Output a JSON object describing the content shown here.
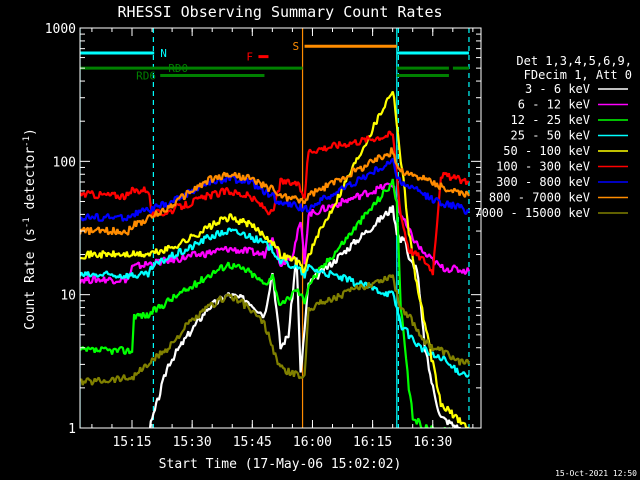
{
  "chart_data": {
    "type": "line",
    "title": "RHESSI Observing Summary Count Rates",
    "xlabel": "Start Time (17-May-06 15:02:02)",
    "ylabel_main": "Count Rate (s",
    "ylabel_sup": "-1",
    "ylabel_tail": " detector",
    "ylabel_close": ")",
    "x_range_minutes": [
      0,
      100
    ],
    "y_range": [
      1,
      1000
    ],
    "y_scale": "log",
    "x_ticks": [
      {
        "minute": 12.97,
        "label": "15:15"
      },
      {
        "minute": 27.97,
        "label": "15:30"
      },
      {
        "minute": 42.97,
        "label": "15:45"
      },
      {
        "minute": 57.97,
        "label": "16:00"
      },
      {
        "minute": 72.97,
        "label": "16:15"
      },
      {
        "minute": 87.97,
        "label": "16:30"
      }
    ],
    "y_ticks": [
      {
        "value": 1,
        "label": "1"
      },
      {
        "value": 10,
        "label": "10"
      },
      {
        "value": 100,
        "label": "100"
      },
      {
        "value": 1000,
        "label": "1000"
      }
    ],
    "legend_header": [
      "Det 1,3,4,5,6,9,",
      "FDecim 1, Att 0"
    ],
    "legend_position": "right",
    "series": [
      {
        "name": "3 - 6 keV",
        "color": "#ffffff",
        "points": [
          [
            0,
            0.9
          ],
          [
            17,
            0.9
          ],
          [
            22,
            3
          ],
          [
            27,
            5
          ],
          [
            32,
            8
          ],
          [
            37,
            10
          ],
          [
            42,
            9
          ],
          [
            46,
            7
          ],
          [
            48,
            15
          ],
          [
            50,
            4
          ],
          [
            52,
            5
          ],
          [
            54,
            20
          ],
          [
            55,
            2.5
          ],
          [
            57,
            12
          ],
          [
            78,
            45
          ],
          [
            79,
            30
          ],
          [
            80,
            25
          ],
          [
            81,
            28
          ],
          [
            82,
            18
          ],
          [
            84,
            16
          ],
          [
            86,
            4
          ],
          [
            88,
            2
          ],
          [
            90,
            1.2
          ],
          [
            97,
            0.9
          ]
        ]
      },
      {
        "name": "6 - 12 keV",
        "color": "#ff00ff",
        "points": [
          [
            0,
            13
          ],
          [
            12,
            13
          ],
          [
            13,
            16
          ],
          [
            17,
            17
          ],
          [
            22,
            18
          ],
          [
            30,
            20
          ],
          [
            37,
            22
          ],
          [
            42,
            21
          ],
          [
            46,
            20
          ],
          [
            48,
            28
          ],
          [
            50,
            17
          ],
          [
            53,
            20
          ],
          [
            55,
            35
          ],
          [
            56,
            18
          ],
          [
            57,
            40
          ],
          [
            78,
            68
          ],
          [
            79,
            50
          ],
          [
            80,
            40
          ],
          [
            82,
            30
          ],
          [
            84,
            24
          ],
          [
            86,
            20
          ],
          [
            88,
            18
          ],
          [
            90,
            16
          ],
          [
            97,
            15
          ]
        ]
      },
      {
        "name": "12 - 25 keV",
        "color": "#00ff00",
        "points": [
          [
            0,
            3.8
          ],
          [
            13,
            3.8
          ],
          [
            13.5,
            7
          ],
          [
            17,
            7
          ],
          [
            22,
            9
          ],
          [
            27,
            11
          ],
          [
            32,
            14
          ],
          [
            37,
            17
          ],
          [
            42,
            15
          ],
          [
            46,
            12
          ],
          [
            48,
            14
          ],
          [
            50,
            8
          ],
          [
            54,
            11
          ],
          [
            56,
            9
          ],
          [
            57,
            12
          ],
          [
            78,
            70
          ],
          [
            79,
            50
          ],
          [
            80,
            8
          ],
          [
            82,
            2
          ],
          [
            83,
            1.2
          ],
          [
            86,
            1
          ],
          [
            97,
            0.9
          ]
        ]
      },
      {
        "name": "25 - 50 keV",
        "color": "#00ffff",
        "points": [
          [
            0,
            14
          ],
          [
            17,
            14
          ],
          [
            18,
            16
          ],
          [
            22,
            19
          ],
          [
            27,
            22
          ],
          [
            32,
            27
          ],
          [
            37,
            30
          ],
          [
            42,
            28
          ],
          [
            46,
            24
          ],
          [
            48,
            22
          ],
          [
            50,
            18
          ],
          [
            54,
            16
          ],
          [
            56,
            14
          ],
          [
            57,
            16
          ],
          [
            78,
            10
          ],
          [
            79,
            8
          ],
          [
            80,
            6
          ],
          [
            82,
            5
          ],
          [
            85,
            4
          ],
          [
            88,
            3.5
          ],
          [
            91,
            3.2
          ],
          [
            93,
            2.8
          ],
          [
            97,
            2.5
          ]
        ]
      },
      {
        "name": "50 - 100 keV",
        "color": "#ffff00",
        "points": [
          [
            0,
            20
          ],
          [
            17,
            20
          ],
          [
            22,
            22
          ],
          [
            27,
            26
          ],
          [
            32,
            32
          ],
          [
            37,
            38
          ],
          [
            42,
            34
          ],
          [
            46,
            28
          ],
          [
            48,
            25
          ],
          [
            50,
            20
          ],
          [
            54,
            18
          ],
          [
            56,
            15
          ],
          [
            57,
            20
          ],
          [
            78,
            350
          ],
          [
            79,
            200
          ],
          [
            80,
            100
          ],
          [
            81,
            60
          ],
          [
            82,
            30
          ],
          [
            84,
            12
          ],
          [
            86,
            6
          ],
          [
            88,
            3
          ],
          [
            90,
            1.5
          ],
          [
            97,
            1
          ]
        ]
      },
      {
        "name": "100 - 300 keV",
        "color": "#ff0000",
        "points": [
          [
            0,
            57
          ],
          [
            12,
            55
          ],
          [
            13,
            60
          ],
          [
            17,
            62
          ],
          [
            18,
            40
          ],
          [
            22,
            42
          ],
          [
            27,
            48
          ],
          [
            32,
            55
          ],
          [
            37,
            60
          ],
          [
            42,
            55
          ],
          [
            46,
            45
          ],
          [
            48,
            40
          ],
          [
            50,
            70
          ],
          [
            54,
            68
          ],
          [
            56,
            55
          ],
          [
            57,
            120
          ],
          [
            78,
            160
          ],
          [
            79,
            80
          ],
          [
            80,
            40
          ],
          [
            82,
            22
          ],
          [
            86,
            18
          ],
          [
            88,
            15
          ],
          [
            90,
            80
          ],
          [
            93,
            75
          ],
          [
            97,
            70
          ]
        ]
      },
      {
        "name": "300 - 800 keV",
        "color": "#0000ff",
        "points": [
          [
            0,
            38
          ],
          [
            12,
            38
          ],
          [
            13,
            40
          ],
          [
            17,
            43
          ],
          [
            22,
            48
          ],
          [
            27,
            58
          ],
          [
            32,
            68
          ],
          [
            37,
            75
          ],
          [
            42,
            70
          ],
          [
            46,
            60
          ],
          [
            48,
            55
          ],
          [
            50,
            48
          ],
          [
            54,
            46
          ],
          [
            56,
            44
          ],
          [
            57,
            45
          ],
          [
            78,
            100
          ],
          [
            79,
            80
          ],
          [
            80,
            70
          ],
          [
            82,
            65
          ],
          [
            85,
            58
          ],
          [
            88,
            52
          ],
          [
            91,
            48
          ],
          [
            94,
            46
          ],
          [
            97,
            42
          ]
        ]
      },
      {
        "name": "800 - 7000 keV",
        "color": "#ff8c00",
        "points": [
          [
            0,
            30
          ],
          [
            12,
            30
          ],
          [
            13,
            33
          ],
          [
            17,
            37
          ],
          [
            22,
            45
          ],
          [
            27,
            58
          ],
          [
            32,
            72
          ],
          [
            37,
            80
          ],
          [
            42,
            75
          ],
          [
            46,
            65
          ],
          [
            48,
            62
          ],
          [
            50,
            55
          ],
          [
            54,
            52
          ],
          [
            56,
            50
          ],
          [
            57,
            55
          ],
          [
            78,
            120
          ],
          [
            79,
            95
          ],
          [
            80,
            85
          ],
          [
            82,
            80
          ],
          [
            85,
            75
          ],
          [
            88,
            70
          ],
          [
            91,
            62
          ],
          [
            94,
            58
          ],
          [
            97,
            55
          ]
        ]
      },
      {
        "name": "7000 - 15000 keV",
        "color": "#808000",
        "points": [
          [
            0,
            2.2
          ],
          [
            13,
            2.4
          ],
          [
            17,
            3
          ],
          [
            22,
            4
          ],
          [
            27,
            6
          ],
          [
            32,
            8
          ],
          [
            37,
            10
          ],
          [
            42,
            8
          ],
          [
            46,
            6
          ],
          [
            48,
            4
          ],
          [
            50,
            2.8
          ],
          [
            54,
            2.5
          ],
          [
            56,
            2.4
          ],
          [
            57,
            8
          ],
          [
            78,
            14
          ],
          [
            79,
            10
          ],
          [
            80,
            8
          ],
          [
            82,
            7
          ],
          [
            84,
            5.5
          ],
          [
            86,
            4.5
          ],
          [
            88,
            4
          ],
          [
            90,
            3.8
          ],
          [
            92,
            3.5
          ],
          [
            94,
            3.2
          ],
          [
            97,
            3
          ]
        ]
      }
    ],
    "flag_lines": [
      {
        "label": "N",
        "color": "#00ffff",
        "row_value": 650,
        "segments": [
          [
            0,
            18.5
          ],
          [
            79,
            97
          ]
        ],
        "label_minute": 20
      },
      {
        "label": "RD0",
        "color": "#008000",
        "row_value": 500,
        "segments": [
          [
            0,
            55.5
          ],
          [
            79,
            92
          ],
          [
            93,
            97
          ]
        ],
        "label_minute": 22
      },
      {
        "label": "RD6",
        "color": "#008000",
        "row_value": 440,
        "segments": [
          [
            20,
            46
          ],
          [
            79,
            92
          ]
        ],
        "label_minute": 14
      },
      {
        "label": "F",
        "color": "#ff0000",
        "row_value": 610,
        "segments": [
          [
            44.5,
            47
          ]
        ],
        "label_minute": 41.5
      },
      {
        "label": "S",
        "color": "#ff8c00",
        "row_value": 730,
        "segments": [
          [
            56,
            79
          ]
        ],
        "label_minute": 53
      }
    ],
    "vlines": [
      {
        "minute": 0,
        "color": "#00ffff",
        "style": "solid"
      },
      {
        "minute": 18.3,
        "color": "#00ffff",
        "style": "dashed"
      },
      {
        "minute": 55.5,
        "color": "#ff8c00",
        "style": "solid"
      },
      {
        "minute": 79,
        "color": "#00ffff",
        "style": "solid"
      },
      {
        "minute": 79.4,
        "color": "#00ffff",
        "style": "dashed"
      },
      {
        "minute": 97,
        "color": "#00ffff",
        "style": "dashed"
      }
    ],
    "footer_date": "15-Oct-2021 12:50"
  }
}
